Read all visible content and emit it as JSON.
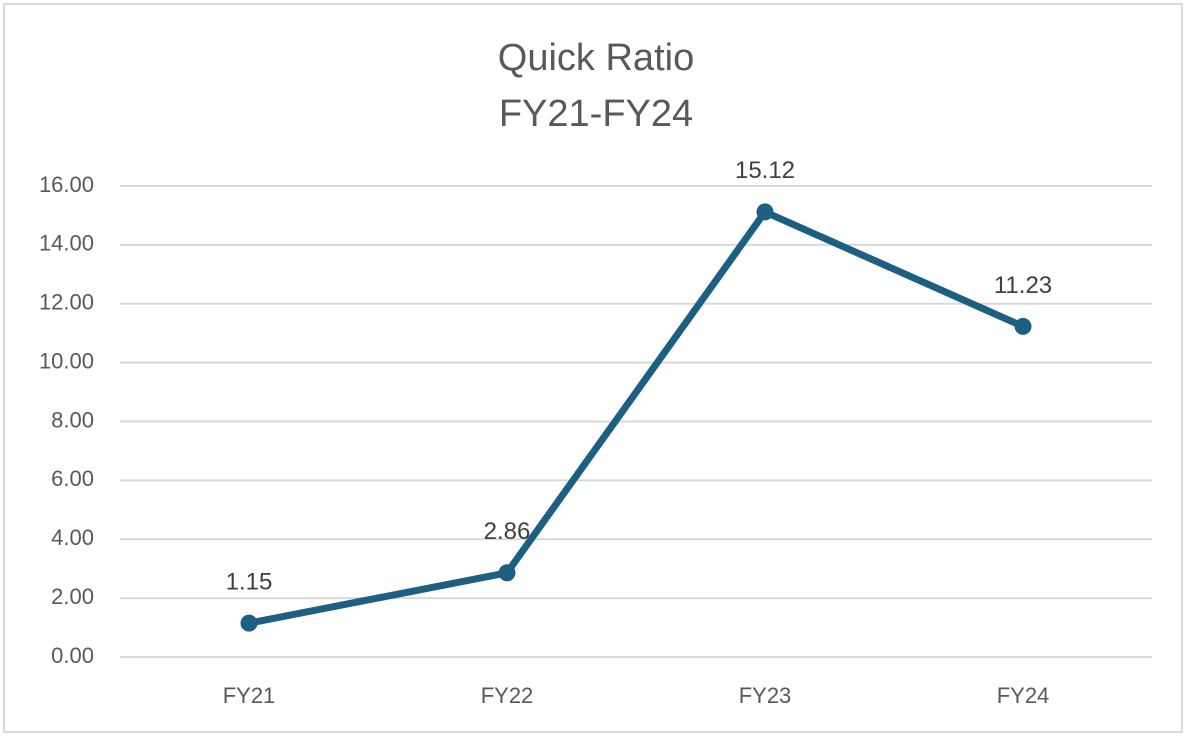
{
  "chart_data": {
    "type": "line",
    "title": "Quick Ratio",
    "subtitle": "FY21-FY24",
    "categories": [
      "FY21",
      "FY22",
      "FY23",
      "FY24"
    ],
    "series": [
      {
        "name": "Quick Ratio",
        "color": "#1c5f80",
        "values": [
          1.15,
          2.86,
          15.12,
          11.23
        ]
      }
    ],
    "ylim": [
      0,
      16
    ],
    "yticks": [
      {
        "value": 0,
        "label": "0.00"
      },
      {
        "value": 2,
        "label": "2.00"
      },
      {
        "value": 4,
        "label": "4.00"
      },
      {
        "value": 6,
        "label": "6.00"
      },
      {
        "value": 8,
        "label": "8.00"
      },
      {
        "value": 10,
        "label": "10.00"
      },
      {
        "value": 12,
        "label": "12.00"
      },
      {
        "value": 14,
        "label": "14.00"
      },
      {
        "value": 16,
        "label": "16.00"
      }
    ],
    "grid": true
  }
}
